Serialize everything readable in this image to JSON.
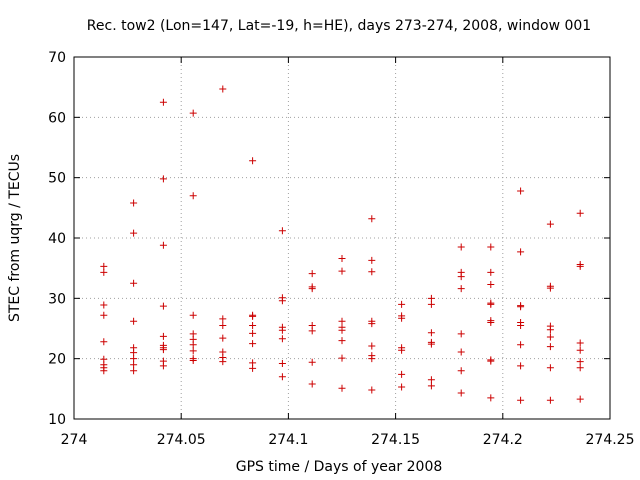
{
  "chart_data": {
    "type": "scatter",
    "title": "Rec. tow2 (Lon=147, Lat=-19, h=HE), days 273-274, 2008, window 001",
    "xlabel": "GPS time / Days of year 2008",
    "ylabel": "STEC from uqrg / TECUs",
    "xlim": [
      274,
      274.25
    ],
    "ylim": [
      10,
      70
    ],
    "x_ticks": [
      274,
      274.05,
      274.1,
      274.15,
      274.2,
      274.25
    ],
    "x_tick_labels": [
      "274",
      "274.05",
      "274.1",
      "274.15",
      "274.2",
      "274.25"
    ],
    "y_ticks": [
      10,
      20,
      30,
      40,
      50,
      60,
      70
    ],
    "y_tick_labels": [
      "10",
      "20",
      "30",
      "40",
      "50",
      "60",
      "70"
    ],
    "grid": true,
    "marker": "plus",
    "color": "#cc0000",
    "points": [
      [
        274.0139,
        35.3
      ],
      [
        274.0139,
        34.3
      ],
      [
        274.0139,
        28.9
      ],
      [
        274.0139,
        27.2
      ],
      [
        274.0139,
        22.8
      ],
      [
        274.0139,
        19.9
      ],
      [
        274.0139,
        19.0
      ],
      [
        274.0139,
        18.5
      ],
      [
        274.0139,
        18.0
      ],
      [
        274.0278,
        45.8
      ],
      [
        274.0278,
        40.8
      ],
      [
        274.0278,
        32.5
      ],
      [
        274.0278,
        26.2
      ],
      [
        274.0278,
        21.8
      ],
      [
        274.0278,
        21.0
      ],
      [
        274.0278,
        20.0
      ],
      [
        274.0278,
        19.0
      ],
      [
        274.0278,
        18.0
      ],
      [
        274.0417,
        62.5
      ],
      [
        274.0417,
        49.8
      ],
      [
        274.0417,
        38.8
      ],
      [
        274.0417,
        28.7
      ],
      [
        274.0417,
        23.7
      ],
      [
        274.0417,
        22.2
      ],
      [
        274.0417,
        21.8
      ],
      [
        274.0417,
        21.5
      ],
      [
        274.0417,
        19.6
      ],
      [
        274.0417,
        18.8
      ],
      [
        274.0556,
        60.7
      ],
      [
        274.0556,
        47.0
      ],
      [
        274.0556,
        27.2
      ],
      [
        274.0556,
        24.1
      ],
      [
        274.0556,
        23.2
      ],
      [
        274.0556,
        22.3
      ],
      [
        274.0556,
        21.3
      ],
      [
        274.0556,
        20.0
      ],
      [
        274.0556,
        19.7
      ],
      [
        274.0694,
        64.7
      ],
      [
        274.0694,
        26.6
      ],
      [
        274.0694,
        25.5
      ],
      [
        274.0694,
        23.4
      ],
      [
        274.0694,
        21.1
      ],
      [
        274.0694,
        20.2
      ],
      [
        274.0694,
        19.5
      ],
      [
        274.0833,
        52.8
      ],
      [
        274.0833,
        27.2
      ],
      [
        274.0833,
        27.0
      ],
      [
        274.0833,
        25.5
      ],
      [
        274.0833,
        24.2
      ],
      [
        274.0833,
        22.5
      ],
      [
        274.0833,
        19.3
      ],
      [
        274.0833,
        18.4
      ],
      [
        274.0972,
        41.2
      ],
      [
        274.0972,
        30.1
      ],
      [
        274.0972,
        29.6
      ],
      [
        274.0972,
        25.2
      ],
      [
        274.0972,
        24.7
      ],
      [
        274.0972,
        23.3
      ],
      [
        274.0972,
        19.2
      ],
      [
        274.0972,
        17.0
      ],
      [
        274.1111,
        34.1
      ],
      [
        274.1111,
        31.9
      ],
      [
        274.1111,
        31.6
      ],
      [
        274.1111,
        25.5
      ],
      [
        274.1111,
        24.6
      ],
      [
        274.1111,
        19.4
      ],
      [
        274.1111,
        15.8
      ],
      [
        274.125,
        36.6
      ],
      [
        274.125,
        34.5
      ],
      [
        274.125,
        26.2
      ],
      [
        274.125,
        25.2
      ],
      [
        274.125,
        24.7
      ],
      [
        274.125,
        23.0
      ],
      [
        274.125,
        20.1
      ],
      [
        274.125,
        15.1
      ],
      [
        274.1389,
        43.2
      ],
      [
        274.1389,
        36.3
      ],
      [
        274.1389,
        34.4
      ],
      [
        274.1389,
        26.2
      ],
      [
        274.1389,
        25.8
      ],
      [
        274.1389,
        22.1
      ],
      [
        274.1389,
        20.5
      ],
      [
        274.1389,
        20.0
      ],
      [
        274.1389,
        14.8
      ],
      [
        274.1528,
        29.0
      ],
      [
        274.1528,
        27.1
      ],
      [
        274.1528,
        26.7
      ],
      [
        274.1528,
        21.8
      ],
      [
        274.1528,
        21.4
      ],
      [
        274.1528,
        17.4
      ],
      [
        274.1528,
        15.3
      ],
      [
        274.1667,
        30.0
      ],
      [
        274.1667,
        29.0
      ],
      [
        274.1667,
        24.3
      ],
      [
        274.1667,
        22.7
      ],
      [
        274.1667,
        22.4
      ],
      [
        274.1667,
        16.5
      ],
      [
        274.1667,
        15.5
      ],
      [
        274.1806,
        38.5
      ],
      [
        274.1806,
        34.3
      ],
      [
        274.1806,
        33.6
      ],
      [
        274.1806,
        31.6
      ],
      [
        274.1806,
        24.1
      ],
      [
        274.1806,
        21.1
      ],
      [
        274.1806,
        18.0
      ],
      [
        274.1806,
        14.3
      ],
      [
        274.1944,
        38.5
      ],
      [
        274.1944,
        34.3
      ],
      [
        274.1944,
        32.3
      ],
      [
        274.1944,
        29.2
      ],
      [
        274.1944,
        29.0
      ],
      [
        274.1944,
        26.3
      ],
      [
        274.1944,
        26.0
      ],
      [
        274.1944,
        19.8
      ],
      [
        274.1944,
        19.6
      ],
      [
        274.1944,
        13.5
      ],
      [
        274.2083,
        47.8
      ],
      [
        274.2083,
        37.7
      ],
      [
        274.2083,
        28.8
      ],
      [
        274.2083,
        28.6
      ],
      [
        274.2083,
        26.0
      ],
      [
        274.2083,
        25.5
      ],
      [
        274.2083,
        22.3
      ],
      [
        274.2083,
        18.8
      ],
      [
        274.2083,
        13.1
      ],
      [
        274.2222,
        42.3
      ],
      [
        274.2222,
        32.0
      ],
      [
        274.2222,
        31.7
      ],
      [
        274.2222,
        25.4
      ],
      [
        274.2222,
        24.8
      ],
      [
        274.2222,
        23.6
      ],
      [
        274.2222,
        22.0
      ],
      [
        274.2222,
        18.5
      ],
      [
        274.2222,
        13.1
      ],
      [
        274.2361,
        44.1
      ],
      [
        274.2361,
        35.6
      ],
      [
        274.2361,
        35.3
      ],
      [
        274.2361,
        22.6
      ],
      [
        274.2361,
        21.4
      ],
      [
        274.2361,
        19.5
      ],
      [
        274.2361,
        18.5
      ],
      [
        274.2361,
        13.3
      ]
    ]
  }
}
